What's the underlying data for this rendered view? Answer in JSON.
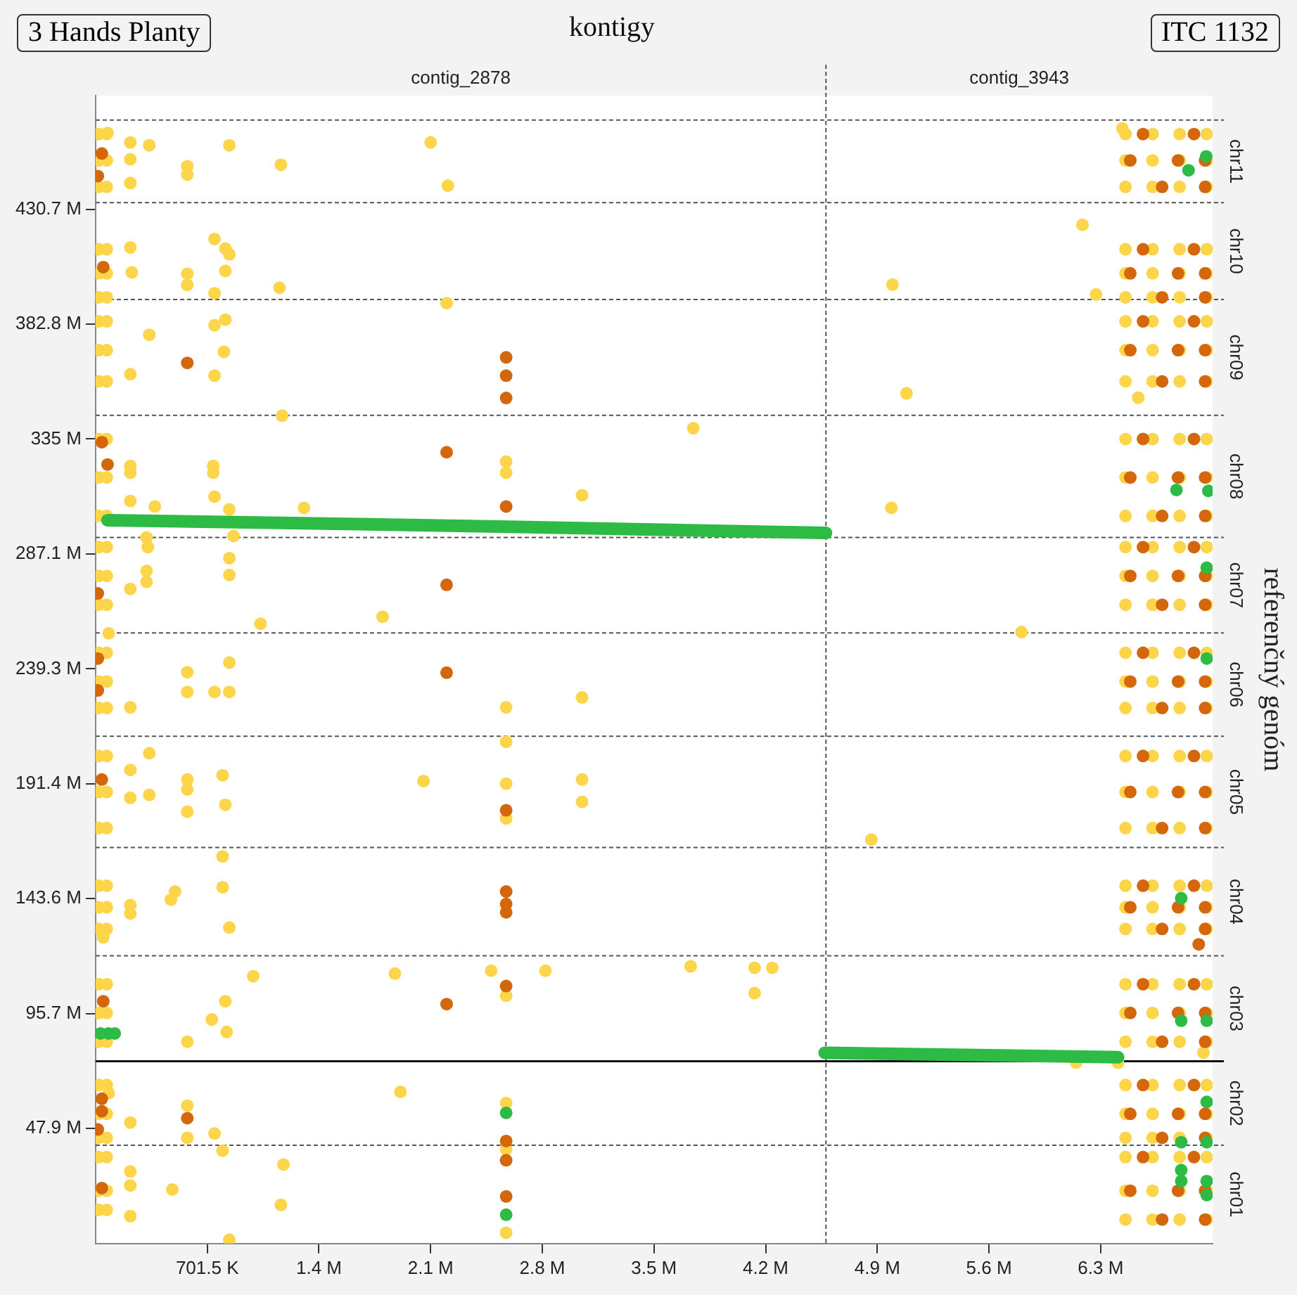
{
  "chart_data": {
    "type": "scatter",
    "title": "kontigy",
    "y2label": "referenčný genóm",
    "annotations": [
      "3 Hands Planty",
      "ITC 1132",
      "contig_2878",
      "contig_3943",
      "chr11",
      "chr10",
      "chr09",
      "chr08",
      "chr07",
      "chr06",
      "chr05",
      "chr04",
      "chr03",
      "chr02",
      "chr01"
    ],
    "xlim": [
      0,
      7.017
    ],
    "xticks": [
      {
        "value": 0.7015,
        "label": "701.5 K"
      },
      {
        "value": 1.403,
        "label": "1.4 M"
      },
      {
        "value": 2.1045,
        "label": "2.1 M"
      },
      {
        "value": 2.806,
        "label": "2.8 M"
      },
      {
        "value": 3.5075,
        "label": "3.5 M"
      },
      {
        "value": 4.209,
        "label": "4.2 M"
      },
      {
        "value": 4.9105,
        "label": "4.9 M"
      },
      {
        "value": 5.612,
        "label": "5.6 M"
      },
      {
        "value": 6.3135,
        "label": "6.3 M"
      }
    ],
    "ylim": [
      0,
      478
    ],
    "yticks": [
      {
        "value": 47.9,
        "label": "47.9 M"
      },
      {
        "value": 95.7,
        "label": "95.7 M"
      },
      {
        "value": 143.6,
        "label": "143.6 M"
      },
      {
        "value": 191.4,
        "label": "191.4 M"
      },
      {
        "value": 239.3,
        "label": "239.3 M"
      },
      {
        "value": 287.1,
        "label": "287.1 M"
      },
      {
        "value": 335,
        "label": "335 M"
      },
      {
        "value": 382.8,
        "label": "382.8 M"
      },
      {
        "value": 430.7,
        "label": "430.7 M"
      }
    ],
    "ref_lines": [
      {
        "axis": "y",
        "value": 467.8,
        "line_style": "dashed"
      },
      {
        "axis": "y",
        "value": 433.4,
        "line_style": "dashed"
      },
      {
        "axis": "y",
        "value": 393.1,
        "line_style": "dashed"
      },
      {
        "axis": "y",
        "value": 344.9,
        "line_style": "dashed"
      },
      {
        "axis": "y",
        "value": 294,
        "line_style": "dashed"
      },
      {
        "axis": "y",
        "value": 254.3,
        "line_style": "dashed"
      },
      {
        "axis": "y",
        "value": 211.2,
        "line_style": "dashed"
      },
      {
        "axis": "y",
        "value": 164.9,
        "line_style": "dashed"
      },
      {
        "axis": "y",
        "value": 119.8,
        "line_style": "dashed"
      },
      {
        "axis": "y",
        "value": 75.9,
        "line_style": "solid"
      },
      {
        "axis": "y",
        "value": 40.9,
        "line_style": "dashed"
      },
      {
        "axis": "x",
        "value": 4.588,
        "line_style": "dashed"
      }
    ],
    "marker": "circle",
    "series": [
      {
        "color": "#fdd54b",
        "x": [
          0.075,
          0.218,
          0.337,
          0.218,
          0.218,
          0.576,
          0.576,
          0.84,
          1.164,
          2.105,
          2.213,
          0.218,
          0.227,
          0.576,
          0.576,
          0.747,
          0.815,
          0.84,
          0.815,
          0.747,
          1.155,
          2.205,
          0.337,
          0.747,
          0.815,
          0.806,
          0.218,
          0.747,
          1.172,
          0.218,
          0.218,
          0.739,
          0.739,
          0.218,
          0.372,
          0.747,
          0.84,
          1.309,
          2.579,
          2.579,
          3.056,
          3.755,
          4.999,
          0.32,
          0.328,
          0.32,
          0.32,
          0.218,
          0.84,
          0.84,
          0.866,
          1.036,
          1.803,
          0.082,
          5.817,
          0.576,
          0.576,
          0.747,
          0.84,
          0.84,
          0.218,
          2.579,
          3.056,
          0.337,
          0.218,
          0.337,
          0.218,
          0.576,
          0.576,
          0.576,
          0.798,
          0.815,
          2.06,
          2.579,
          2.579,
          2.579,
          3.056,
          3.056,
          4.873,
          0.798,
          0.798,
          0.499,
          0.473,
          0.218,
          0.218,
          0.84,
          0.048,
          0.99,
          1.88,
          2.485,
          2.826,
          3.738,
          4.14,
          4.251,
          4.14,
          2.579,
          0.815,
          0.73,
          0.823,
          0.576,
          6.16,
          6.423,
          0.082,
          0.218,
          0.576,
          0.747,
          0.576,
          0.798,
          1.18,
          1.915,
          2.579,
          2.579,
          0.218,
          0.218,
          0.218,
          0.482,
          1.164,
          0.84,
          2.579,
          6.45,
          6.2,
          5.006,
          6.285,
          5.094,
          6.55,
          6.96,
          0.02,
          0.07,
          0.02,
          0.07,
          0.02,
          0.07,
          0.02,
          0.07,
          0.02,
          0.07,
          0.02,
          0.07,
          0.02,
          0.07,
          0.02,
          0.07,
          0.02,
          0.07,
          0.02,
          0.07,
          0.02,
          0.07,
          0.02,
          0.07,
          0.02,
          0.07,
          0.02,
          0.07,
          0.02,
          0.07,
          0.02,
          0.07,
          0.02,
          0.07,
          0.02,
          0.07,
          0.02,
          0.07,
          0.02,
          0.07,
          0.02,
          0.07,
          0.02,
          0.07,
          0.02,
          0.07,
          0.02,
          0.07,
          0.02,
          0.07,
          0.02,
          0.07,
          0.02,
          0.07,
          0.02,
          0.07,
          0.02,
          0.07,
          0.02,
          0.07,
          0.02,
          0.07,
          0.02,
          0.07,
          0.02,
          0.07,
          6.47,
          6.64,
          6.81,
          6.98,
          6.47,
          6.64,
          6.81,
          6.98,
          6.47,
          6.64,
          6.81,
          6.98,
          6.47,
          6.64,
          6.81,
          6.98,
          6.47,
          6.64,
          6.81,
          6.98,
          6.47,
          6.64,
          6.81,
          6.98,
          6.47,
          6.64,
          6.81,
          6.98,
          6.47,
          6.64,
          6.81,
          6.98,
          6.47,
          6.64,
          6.81,
          6.98,
          6.47,
          6.64,
          6.81,
          6.98,
          6.47,
          6.64,
          6.81,
          6.98,
          6.47,
          6.64,
          6.81,
          6.98,
          6.47,
          6.64,
          6.81,
          6.98,
          6.47,
          6.64,
          6.81,
          6.98,
          6.47,
          6.64,
          6.81,
          6.98,
          6.47,
          6.64,
          6.81,
          6.98,
          6.47,
          6.64,
          6.81,
          6.98,
          6.47,
          6.64,
          6.81,
          6.98,
          6.47,
          6.64,
          6.81,
          6.98,
          6.47,
          6.64,
          6.81,
          6.98,
          6.47,
          6.64,
          6.81,
          6.98,
          6.47,
          6.64,
          6.81,
          6.98,
          6.47,
          6.64,
          6.81,
          6.98,
          6.47,
          6.64,
          6.81,
          6.98,
          6.47,
          6.64,
          6.81,
          6.98,
          6.47,
          6.64,
          6.81,
          6.98,
          6.47,
          6.64,
          6.81,
          6.98,
          6.47,
          6.64,
          6.81,
          6.98,
          6.47,
          6.64,
          6.81,
          6.98,
          6.47,
          6.64,
          6.81,
          6.98,
          6.47,
          6.64,
          6.81,
          6.98,
          6.47,
          6.64,
          6.81,
          6.98,
          6.47,
          6.64,
          6.81,
          6.98
        ],
        "values": [
          462.5,
          458.5,
          457.3,
          451.5,
          441.6,
          448.6,
          445.1,
          457.3,
          449.2,
          458.5,
          440.5,
          414.8,
          404.4,
          403.8,
          399.2,
          418.3,
          414.3,
          411.9,
          405,
          395.7,
          398,
          391.6,
          378.4,
          382.4,
          384.7,
          371.3,
          362,
          361.4,
          344.7,
          323.8,
          321,
          323.8,
          321,
          309.2,
          306.9,
          311,
          305.7,
          306.3,
          325.6,
          321,
          311.6,
          339.5,
          306.3,
          294,
          290,
          280.1,
          275.5,
          272.6,
          285.4,
          278.4,
          294.6,
          258.1,
          261,
          254.1,
          254.6,
          237.9,
          229.7,
          229.7,
          241.9,
          229.7,
          223.3,
          223.3,
          227.4,
          204.2,
          197.2,
          186.8,
          185.6,
          193.2,
          189.1,
          179.8,
          195,
          182.7,
          192.6,
          208.9,
          191.5,
          177,
          193.2,
          183.9,
          168.2,
          161.2,
          148.4,
          146.6,
          143.2,
          140.9,
          137.4,
          131.6,
          127.5,
          111.3,
          112.4,
          113.6,
          113.6,
          115.4,
          114.8,
          114.8,
          104.3,
          103.2,
          100.9,
          93.3,
          88.1,
          84,
          75.3,
          75.3,
          62.6,
          50.4,
          57.4,
          45.8,
          44,
          38.7,
          32.9,
          63.2,
          58.5,
          39.2,
          30,
          24.2,
          11.4,
          22.5,
          16.1,
          1.6,
          4.5,
          464.3,
          424.2,
          399.3,
          395.2,
          354,
          352.2,
          79.5,
          462,
          462,
          451,
          451,
          440,
          440,
          414,
          414,
          404,
          404,
          394,
          394,
          384,
          384,
          372,
          372,
          359,
          359,
          335,
          335,
          319,
          319,
          303,
          303,
          290,
          290,
          278,
          278,
          266,
          266,
          246,
          246,
          234,
          234,
          223,
          223,
          203,
          203,
          188,
          188,
          173,
          173,
          149,
          149,
          140,
          140,
          131,
          131,
          108,
          108,
          96,
          96,
          84,
          84,
          66,
          66,
          54,
          54,
          44,
          44,
          36,
          36,
          22,
          22,
          14,
          14,
          462,
          462,
          462,
          462,
          451,
          451,
          451,
          451,
          440,
          440,
          440,
          440,
          414,
          414,
          414,
          414,
          404,
          404,
          404,
          404,
          394,
          394,
          394,
          394,
          384,
          384,
          384,
          384,
          372,
          372,
          372,
          372,
          359,
          359,
          359,
          359,
          335,
          335,
          335,
          335,
          319,
          319,
          319,
          319,
          303,
          303,
          303,
          303,
          290,
          290,
          290,
          290,
          278,
          278,
          278,
          278,
          266,
          266,
          266,
          266,
          246,
          246,
          246,
          246,
          234,
          234,
          234,
          234,
          223,
          223,
          223,
          223,
          203,
          203,
          203,
          203,
          188,
          188,
          188,
          188,
          173,
          173,
          173,
          173,
          149,
          149,
          149,
          149,
          140,
          140,
          140,
          140,
          131,
          131,
          131,
          131,
          108,
          108,
          108,
          108,
          96,
          96,
          96,
          96,
          84,
          84,
          84,
          84,
          66,
          66,
          66,
          66,
          54,
          54,
          54,
          54,
          44,
          44,
          44,
          44,
          36,
          36,
          36,
          36,
          22,
          22,
          22,
          22,
          10,
          10,
          10,
          10
        ]
      },
      {
        "color": "#d4670b",
        "x": [
          0.039,
          0.014,
          0.048,
          0.576,
          2.579,
          2.579,
          2.579,
          0.039,
          0.075,
          2.205,
          2.579,
          2.205,
          0.014,
          0.014,
          0.014,
          2.205,
          0.039,
          2.579,
          2.579,
          2.579,
          2.579,
          0.048,
          2.205,
          2.579,
          0.039,
          0.039,
          0.014,
          0.039,
          0.576,
          2.579,
          2.579,
          2.579,
          6.93,
          6.5,
          6.58,
          6.7,
          6.8,
          6.9,
          6.97,
          6.97,
          6.5,
          6.58,
          6.7,
          6.8,
          6.9,
          6.97,
          6.97,
          6.5,
          6.58,
          6.7,
          6.8,
          6.9,
          6.97,
          6.97,
          6.5,
          6.58,
          6.7,
          6.8,
          6.9,
          6.97,
          6.97,
          6.5,
          6.58,
          6.7,
          6.8,
          6.9,
          6.97,
          6.97,
          6.5,
          6.58,
          6.7,
          6.8,
          6.9,
          6.97,
          6.97,
          6.5,
          6.58,
          6.7,
          6.8,
          6.9,
          6.97,
          6.97,
          6.5,
          6.58,
          6.7,
          6.8,
          6.9,
          6.97,
          6.97,
          6.5,
          6.58,
          6.7,
          6.8,
          6.9,
          6.97,
          6.97,
          6.5,
          6.58,
          6.7,
          6.8,
          6.9,
          6.97,
          6.97,
          6.5,
          6.58,
          6.7,
          6.8,
          6.9,
          6.97,
          6.97
        ],
        "values": [
          453.9,
          444.5,
          406.6,
          366.7,
          369,
          361.4,
          352.1,
          333.7,
          324.4,
          329.5,
          306.9,
          274.3,
          270.7,
          243.6,
          230.3,
          237.7,
          193.2,
          180.4,
          146.6,
          141.4,
          137.9,
          100.9,
          99.7,
          107.2,
          60.3,
          55.1,
          47.5,
          23.1,
          52.2,
          42.7,
          34.7,
          19.6,
          124.6,
          451,
          462,
          440,
          451,
          462,
          451,
          440,
          404,
          414,
          394,
          404,
          414,
          404,
          394,
          372,
          384,
          359,
          372,
          384,
          372,
          359,
          319,
          335,
          303,
          319,
          335,
          319,
          303,
          278,
          290,
          266,
          278,
          290,
          278,
          266,
          234,
          246,
          223,
          234,
          246,
          234,
          223,
          188,
          203,
          173,
          188,
          203,
          188,
          173,
          140,
          149,
          131,
          140,
          149,
          140,
          131,
          96,
          108,
          84,
          96,
          108,
          96,
          84,
          54,
          66,
          44,
          54,
          66,
          54,
          44,
          22,
          36,
          10,
          22,
          36,
          22,
          10
        ]
      },
      {
        "color": "#2dbb45",
        "x": [
          0.03,
          0.08,
          0.12,
          2.579,
          2.579,
          6.866,
          6.977,
          6.79,
          6.99,
          6.98,
          6.98,
          6.82,
          6.82,
          6.98,
          6.98,
          6.82,
          6.98,
          6.82,
          6.82,
          6.98,
          6.98
        ],
        "values": [
          87.5,
          87.5,
          87.5,
          54.4,
          12,
          446.9,
          452.7,
          313.8,
          313.4,
          281.4,
          243.6,
          143.8,
          92.8,
          92.8,
          59,
          42.2,
          42.2,
          30.6,
          26,
          26,
          20.2
        ]
      },
      {
        "type": "line",
        "marker": "none",
        "color": "#2dbb45",
        "x": [
          0.0742,
          2.35,
          4.588
        ],
        "values": [
          301.2,
          298.8,
          295.9
        ]
      },
      {
        "type": "line",
        "marker": "none",
        "color": "#2dbb45",
        "x": [
          4.58,
          6.423
        ],
        "values": [
          79.4,
          77.6
        ]
      }
    ]
  }
}
